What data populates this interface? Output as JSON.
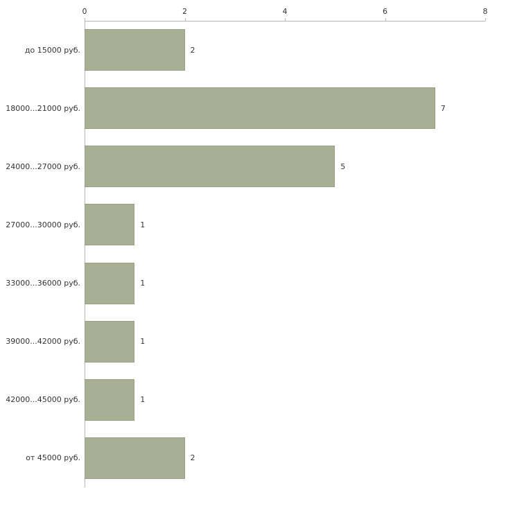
{
  "chart_data": {
    "type": "bar",
    "orientation": "horizontal",
    "title": "",
    "xlabel": "",
    "ylabel": "",
    "categories": [
      "до 15000 руб.",
      "18000...21000 руб.",
      "24000...27000 руб.",
      "27000...30000 руб.",
      "33000...36000 руб.",
      "39000...42000 руб.",
      "42000...45000 руб.",
      "от 45000 руб."
    ],
    "values": [
      2,
      7,
      5,
      1,
      1,
      1,
      1,
      2
    ],
    "x_ticks": [
      "0",
      "2",
      "4",
      "6",
      "8"
    ],
    "xlim": [
      0,
      8
    ],
    "grid": false,
    "legend": false,
    "colors": {
      "bar_fill": "#a8af94",
      "bar_border": "#96a07e",
      "axis": "#b5b5b5",
      "text": "#333333",
      "background": "#ffffff"
    }
  }
}
